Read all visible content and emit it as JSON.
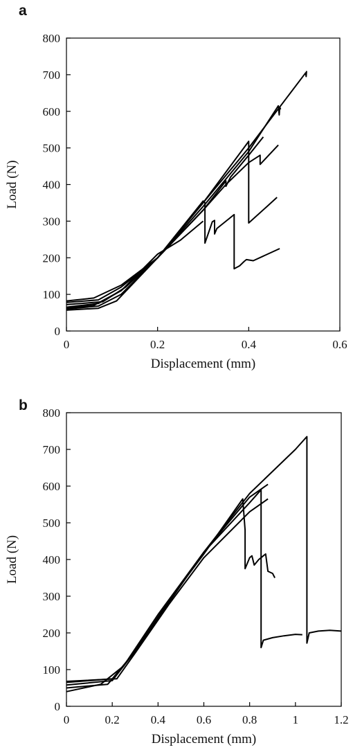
{
  "chart_data": [
    {
      "panel": "a",
      "type": "line",
      "xlabel": "Displacement (mm)",
      "ylabel": "Load (N)",
      "xlim": [
        0,
        0.6
      ],
      "ylim": [
        0,
        800
      ],
      "xticks": [
        "0",
        "0.2",
        "0.4",
        "0.6"
      ],
      "yticks": [
        "0",
        "100",
        "200",
        "300",
        "400",
        "500",
        "600",
        "700",
        "800"
      ],
      "grid": false,
      "legend": "none",
      "series": [
        {
          "x": [
            0,
            0.07,
            0.12,
            0.2,
            0.3,
            0.4,
            0.525,
            0.526,
            0.527
          ],
          "y": [
            60,
            68,
            100,
            200,
            350,
            500,
            705,
            695,
            710
          ]
        },
        {
          "x": [
            0,
            0.07,
            0.12,
            0.2,
            0.3,
            0.4,
            0.465,
            0.467,
            0.468,
            0.47
          ],
          "y": [
            65,
            75,
            110,
            200,
            340,
            490,
            615,
            590,
            612,
            605
          ]
        },
        {
          "x": [
            0,
            0.08,
            0.13,
            0.2,
            0.3,
            0.4,
            0.4,
            0.44,
            0.462
          ],
          "y": [
            72,
            80,
            120,
            200,
            350,
            518,
            295,
            340,
            365
          ]
        },
        {
          "x": [
            0,
            0.07,
            0.12,
            0.2,
            0.3,
            0.35,
            0.35,
            0.36,
            0.4,
            0.432
          ],
          "y": [
            78,
            85,
            120,
            200,
            330,
            410,
            395,
            420,
            480,
            530
          ]
        },
        {
          "x": [
            0,
            0.06,
            0.12,
            0.2,
            0.3,
            0.35,
            0.4,
            0.425,
            0.425,
            0.465
          ],
          "y": [
            82,
            90,
            125,
            200,
            330,
            400,
            460,
            480,
            455,
            508
          ]
        },
        {
          "x": [
            0,
            0.07,
            0.11,
            0.2,
            0.3,
            0.304,
            0.304,
            0.32,
            0.325,
            0.325,
            0.33,
            0.368,
            0.368,
            0.38,
            0.39,
            0.395,
            0.41,
            0.468
          ],
          "y": [
            57,
            62,
            82,
            200,
            355,
            350,
            240,
            298,
            302,
            265,
            280,
            318,
            170,
            178,
            190,
            195,
            192,
            225
          ]
        },
        {
          "x": [
            0,
            0.06,
            0.12,
            0.2,
            0.25,
            0.3
          ],
          "y": [
            62,
            70,
            110,
            210,
            248,
            300
          ]
        }
      ]
    },
    {
      "panel": "b",
      "type": "line",
      "xlabel": "Displacement (mm)",
      "ylabel": "Load (N)",
      "xlim": [
        0,
        1.2
      ],
      "ylim": [
        0,
        800
      ],
      "xticks": [
        "0",
        "0.2",
        "0.4",
        "0.6",
        "0.8",
        "1",
        "1.2"
      ],
      "yticks": [
        "0",
        "100",
        "200",
        "300",
        "400",
        "500",
        "600",
        "700",
        "800"
      ],
      "grid": false,
      "legend": "none",
      "series": [
        {
          "x": [
            0,
            0.15,
            0.25,
            0.4,
            0.6,
            0.8,
            1.0,
            1.05,
            1.05,
            1.06,
            1.1,
            1.15,
            1.2
          ],
          "y": [
            40,
            60,
            110,
            240,
            420,
            580,
            700,
            735,
            172,
            200,
            205,
            207,
            205
          ]
        },
        {
          "x": [
            0,
            0.18,
            0.25,
            0.4,
            0.6,
            0.8,
            0.85,
            0.85,
            0.86,
            0.9,
            0.95,
            1.0,
            1.03
          ],
          "y": [
            50,
            60,
            110,
            250,
            420,
            555,
            590,
            160,
            180,
            187,
            192,
            196,
            195
          ]
        },
        {
          "x": [
            0,
            0.2,
            0.3,
            0.45,
            0.6,
            0.77,
            0.78,
            0.78,
            0.8,
            0.81,
            0.82,
            0.84,
            0.86,
            0.87,
            0.88,
            0.9,
            0.91
          ],
          "y": [
            58,
            70,
            150,
            290,
            415,
            565,
            480,
            375,
            405,
            410,
            385,
            400,
            410,
            415,
            368,
            362,
            350
          ]
        },
        {
          "x": [
            0,
            0.2,
            0.3,
            0.45,
            0.6,
            0.8,
            0.88
          ],
          "y": [
            65,
            75,
            150,
            290,
            420,
            570,
            605
          ]
        },
        {
          "x": [
            0,
            0.22,
            0.3,
            0.45,
            0.6,
            0.8,
            0.88
          ],
          "y": [
            68,
            75,
            145,
            280,
            405,
            530,
            565
          ]
        }
      ]
    }
  ]
}
